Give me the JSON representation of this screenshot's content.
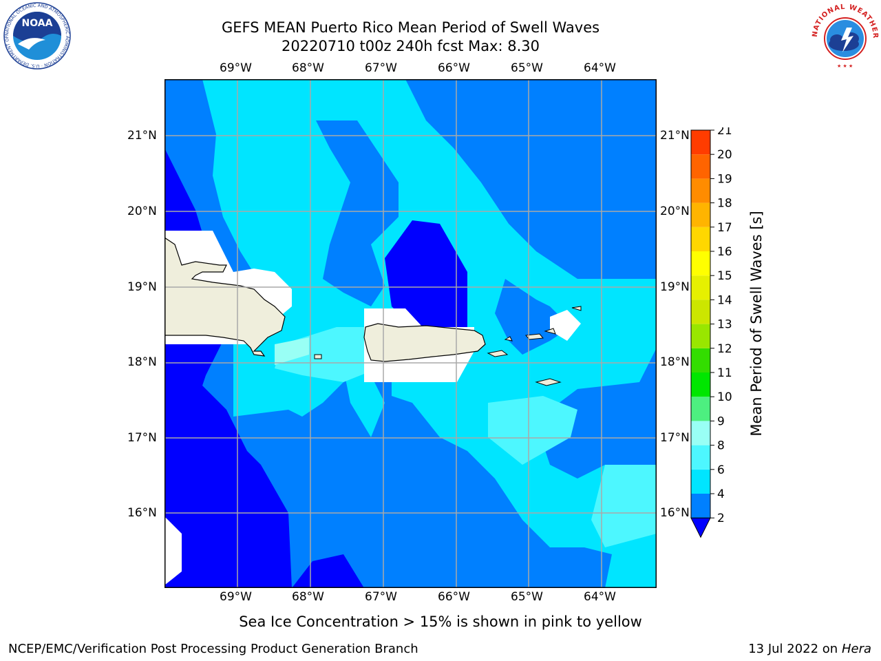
{
  "title": {
    "line1": "GEFS MEAN Puerto Rico Mean Period of Swell Waves",
    "line2": "20220710 t00z 240h fcst   Max: 8.30"
  },
  "map": {
    "lon_labels": [
      "69°W",
      "68°W",
      "67°W",
      "66°W",
      "65°W",
      "64°W"
    ],
    "lat_labels": [
      "21°N",
      "20°N",
      "19°N",
      "18°N",
      "17°N",
      "16°N"
    ],
    "lon_range": [
      -70.0,
      -63.3
    ],
    "lat_range": [
      15.0,
      21.75
    ]
  },
  "colorbar": {
    "label": "Mean Period of Swell Waves [s]",
    "ticks": [
      "21",
      "20",
      "19",
      "18",
      "17",
      "16",
      "15",
      "14",
      "13",
      "12",
      "11",
      "10",
      "9",
      "8",
      "6",
      "4",
      "2"
    ],
    "colors": [
      "#0000ff",
      "#0080ff",
      "#00e5ff",
      "#4df7ff",
      "#99fff5",
      "#4def80",
      "#00e600",
      "#33dd00",
      "#99e600",
      "#cce600",
      "#e6f000",
      "#ffff00",
      "#ffd700",
      "#ffb400",
      "#ff8c00",
      "#ff6400",
      "#ff3c00",
      "#ff0000"
    ]
  },
  "note": "Sea Ice Concentration > 15% is shown in pink to yellow",
  "footer": {
    "left": "NCEP/EMC/Verification Post Processing Product Generation Branch",
    "date": "13 Jul 2022 on ",
    "machine": "Hera"
  },
  "logos": {
    "noaa_text": "NOAA",
    "noaa_ring": "NATIONAL OCEANIC AND ATMOSPHERIC ADMINISTRATION · U.S. DEPARTMENT OF COMMERCE",
    "nws_ring": "NATIONAL WEATHER SERVICE"
  }
}
